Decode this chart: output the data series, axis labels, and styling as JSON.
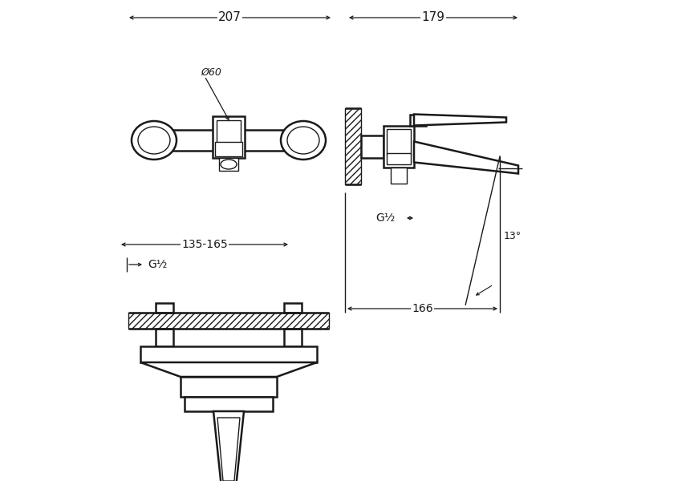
{
  "bg_color": "#ffffff",
  "line_color": "#1a1a1a",
  "fig_width": 8.65,
  "fig_height": 6.0,
  "dpi": 100,
  "dim_207": "207",
  "dim_179": "179",
  "dim_phi60": "Ø60",
  "dim_135_165": "135-165",
  "dim_g12": "G¹⁄₂",
  "dim_166": "166",
  "dim_13": "13°"
}
